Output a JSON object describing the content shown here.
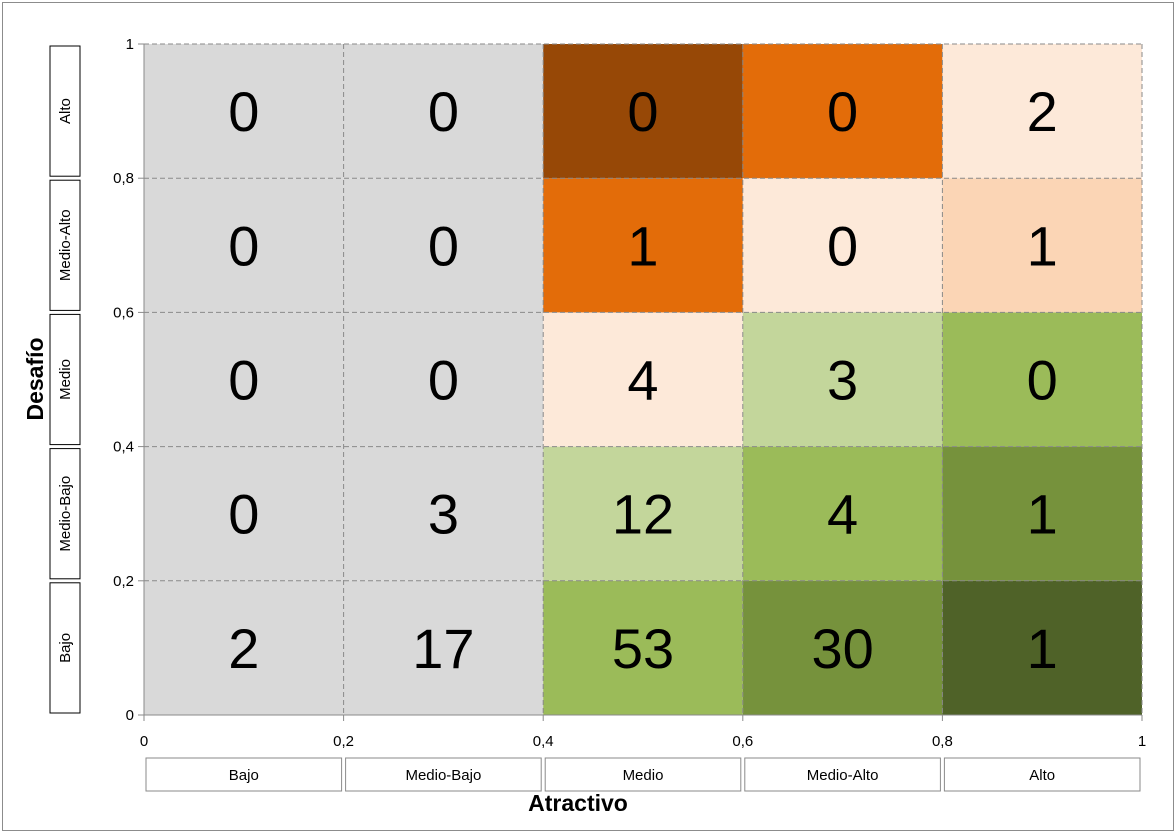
{
  "chart_data": {
    "type": "heatmap",
    "title": "",
    "xlabel": "Atractivo",
    "ylabel": "Desafío",
    "xlim": [
      0,
      1
    ],
    "ylim": [
      0,
      1
    ],
    "x_ticks": [
      "0",
      "0,2",
      "0,4",
      "0,6",
      "0,8",
      "1"
    ],
    "y_ticks": [
      "0",
      "0,2",
      "0,4",
      "0,6",
      "0,8",
      "1"
    ],
    "x_categories": [
      "Bajo",
      "Medio-Bajo",
      "Medio",
      "Medio-Alto",
      "Alto"
    ],
    "y_categories": [
      "Bajo",
      "Medio-Bajo",
      "Medio",
      "Medio-Alto",
      "Alto"
    ],
    "values": [
      [
        2,
        17,
        53,
        30,
        1
      ],
      [
        0,
        3,
        12,
        4,
        1
      ],
      [
        0,
        0,
        4,
        3,
        0
      ],
      [
        0,
        0,
        1,
        0,
        1
      ],
      [
        0,
        0,
        0,
        0,
        2
      ]
    ],
    "cell_colors": [
      [
        "#d9d9d9",
        "#d9d9d9",
        "#9bbb59",
        "#76923c",
        "#4f6228"
      ],
      [
        "#d9d9d9",
        "#d9d9d9",
        "#c3d69b",
        "#9bbb59",
        "#76923c"
      ],
      [
        "#d9d9d9",
        "#d9d9d9",
        "#fde9d9",
        "#c3d69b",
        "#9bbb59"
      ],
      [
        "#d9d9d9",
        "#d9d9d9",
        "#e36c09",
        "#fde9d9",
        "#fbd5b5"
      ],
      [
        "#d9d9d9",
        "#d9d9d9",
        "#974806",
        "#e36c09",
        "#fde9d9"
      ]
    ]
  }
}
